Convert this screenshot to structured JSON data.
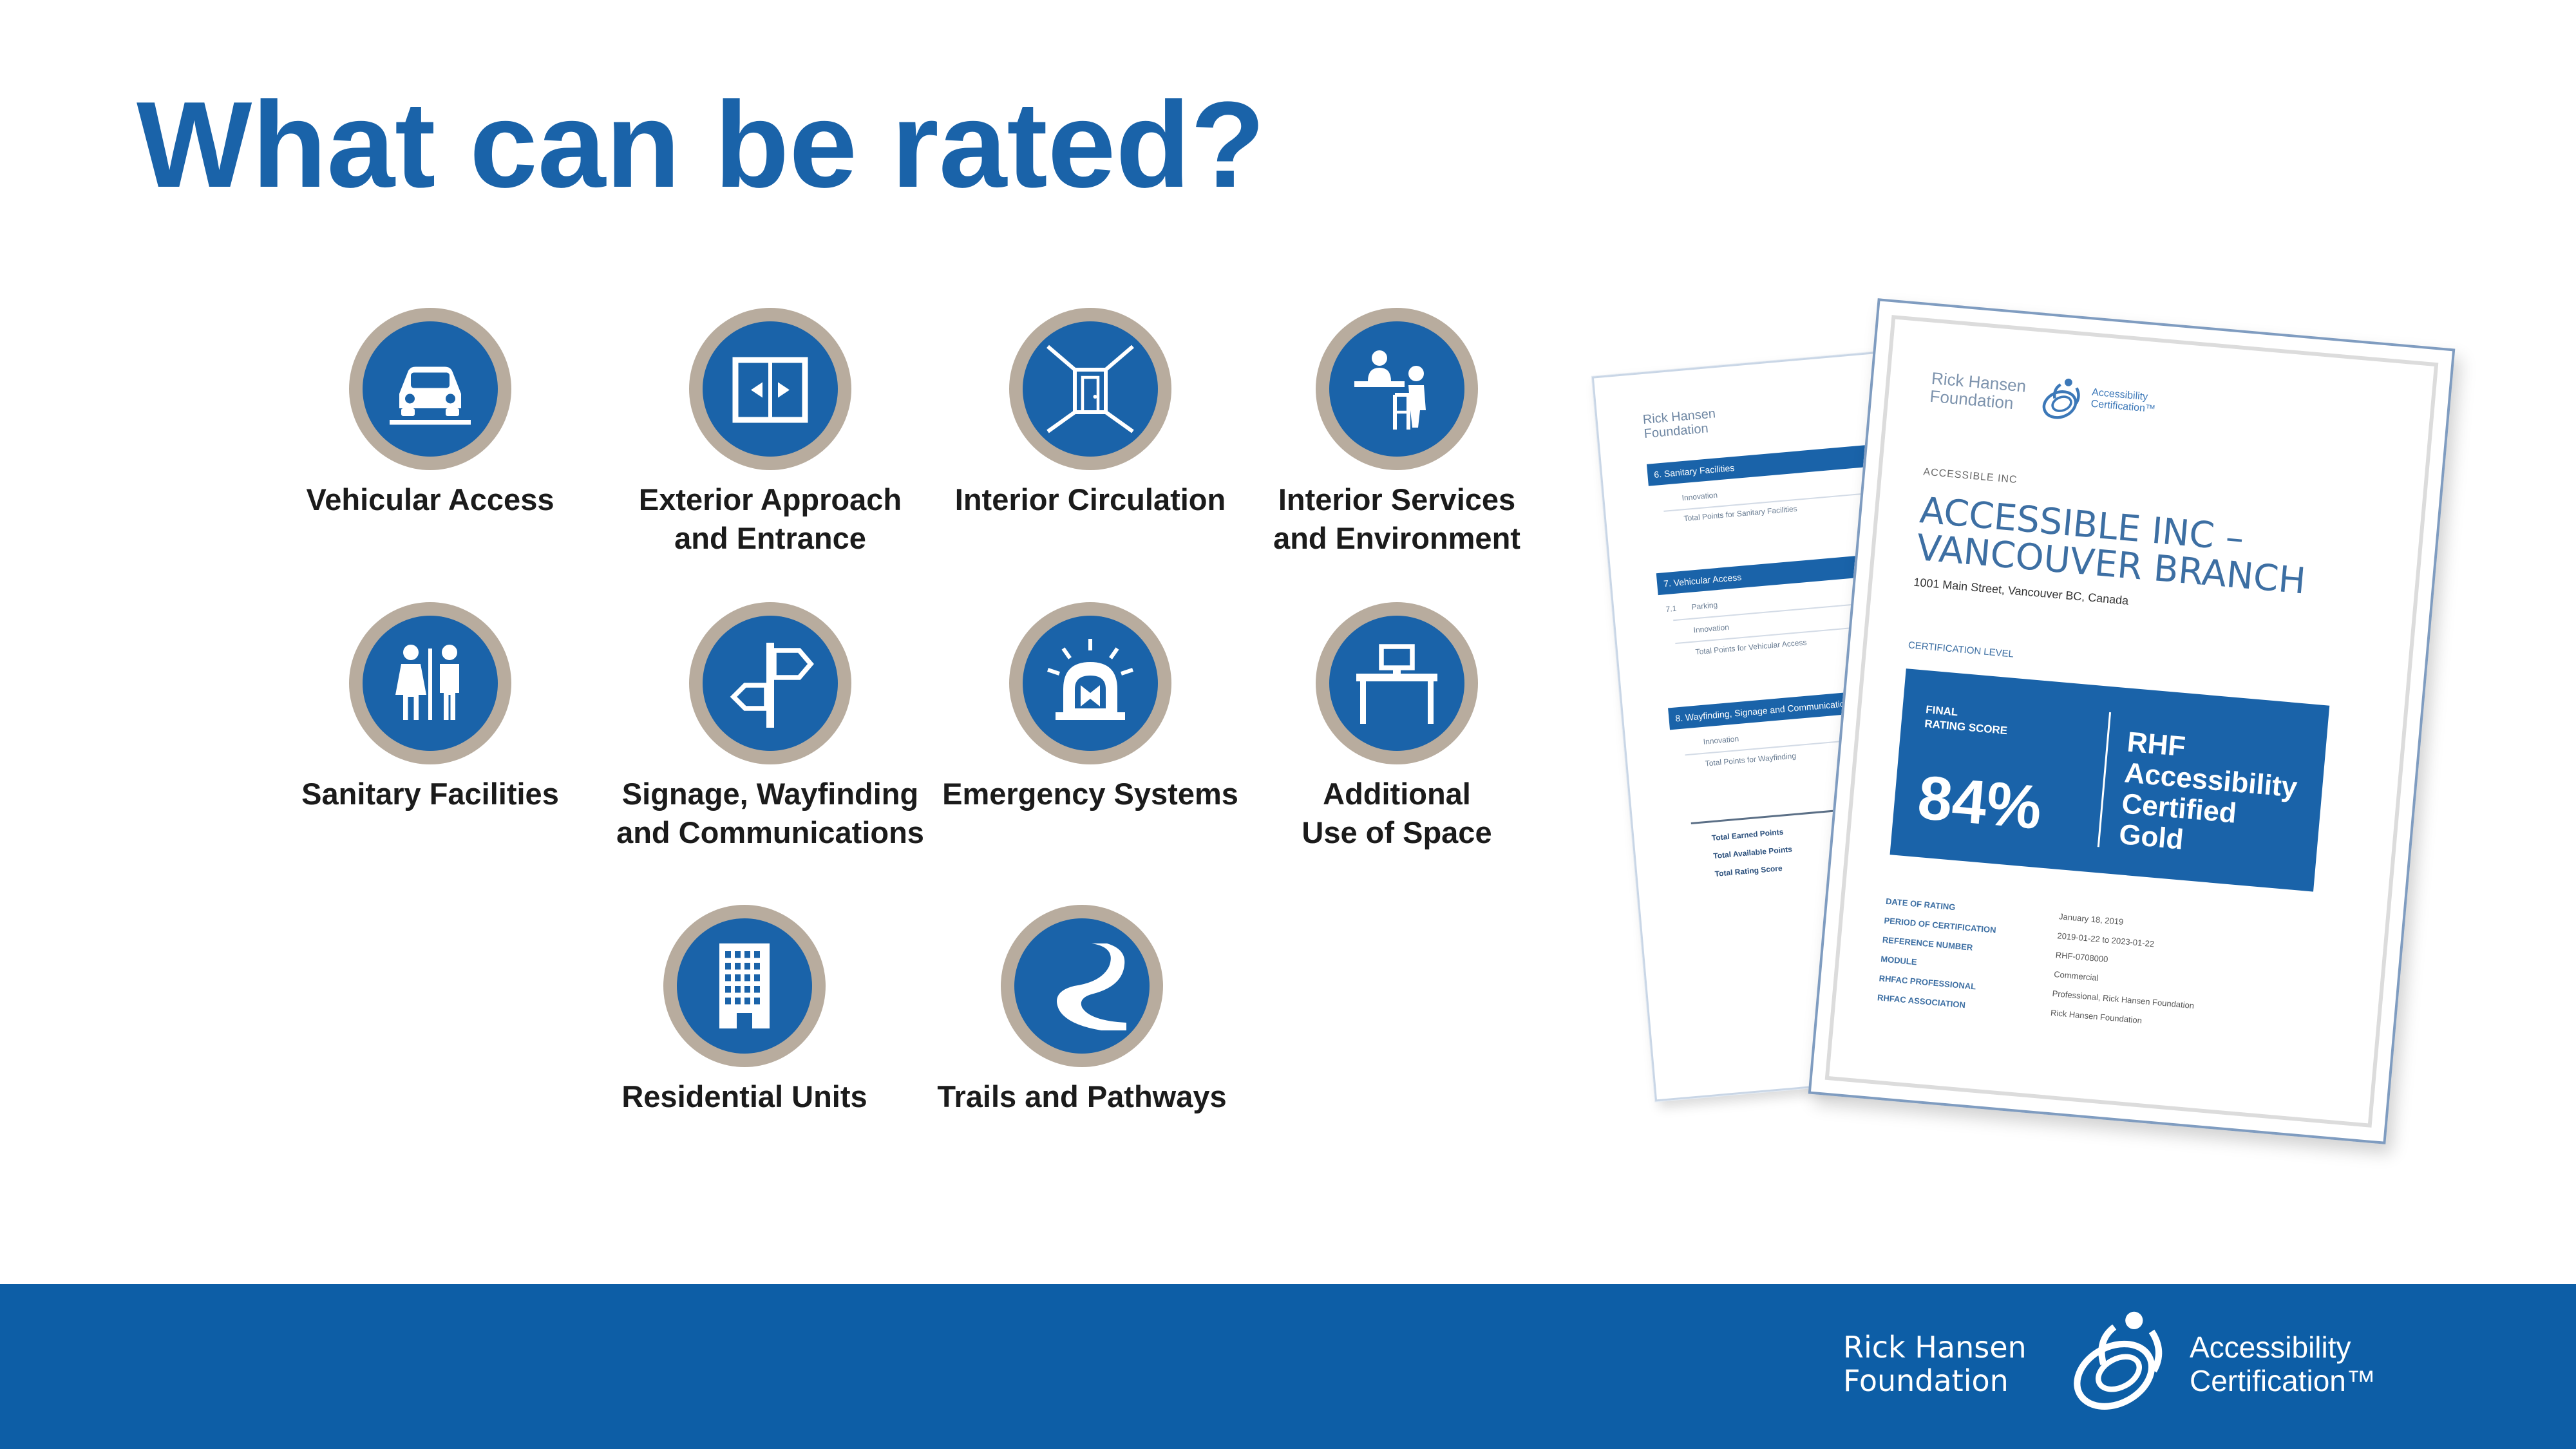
{
  "slide": {
    "title": "What can be rated?",
    "colors": {
      "brand_blue": "#1a63a9",
      "icon_ring": "#b8ac9e",
      "footer_blue": "#0d5ea6"
    }
  },
  "categories": [
    {
      "icon": "car-icon",
      "label_line1": "Vehicular Access",
      "label_line2": ""
    },
    {
      "icon": "sliding-doors-icon",
      "label_line1": "Exterior Approach",
      "label_line2": "and Entrance"
    },
    {
      "icon": "corridor-door-icon",
      "label_line1": "Interior Circulation",
      "label_line2": ""
    },
    {
      "icon": "service-counter-icon",
      "label_line1": "Interior Services",
      "label_line2": "and Environment"
    },
    {
      "icon": "restroom-icon",
      "label_line1": "Sanitary Facilities",
      "label_line2": ""
    },
    {
      "icon": "signpost-icon",
      "label_line1": "Signage, Wayfinding",
      "label_line2": "and Communications"
    },
    {
      "icon": "alarm-light-icon",
      "label_line1": "Emergency Systems",
      "label_line2": ""
    },
    {
      "icon": "desk-icon",
      "label_line1": "Additional",
      "label_line2": "Use of Space"
    },
    {
      "icon": "apartment-building-icon",
      "label_line1": "Residential Units",
      "label_line2": ""
    },
    {
      "icon": "trail-path-icon",
      "label_line1": "Trails and Pathways",
      "label_line2": ""
    }
  ],
  "certificate": {
    "logo_org_line1": "Rick Hansen",
    "logo_org_line2": "Foundation",
    "logo_program_line1": "Accessibility",
    "logo_program_line2": "Certification™",
    "kicker": "ACCESSIBLE INC",
    "business_name_line1": "ACCESSIBLE INC –",
    "business_name_line2": "VANCOUVER BRANCH",
    "address": "1001 Main Street, Vancouver BC, Canada",
    "certification_level_label": "CERTIFICATION LEVEL",
    "final_rating_line1": "FINAL",
    "final_rating_line2": "RATING SCORE",
    "score": "84%",
    "cert_line1": "RHF",
    "cert_line2": "Accessibility",
    "cert_line3": "Certified",
    "cert_line4": "Gold",
    "meta": [
      {
        "key": "DATE OF RATING",
        "value": "January 18, 2019"
      },
      {
        "key": "PERIOD OF CERTIFICATION",
        "value": "2019-01-22 to 2023-01-22"
      },
      {
        "key": "REFERENCE NUMBER",
        "value": "RHF-0708000"
      },
      {
        "key": "MODULE",
        "value": "Commercial"
      },
      {
        "key": "RHFAC PROFESSIONAL",
        "value": "Professional, Rick Hansen Foundation"
      },
      {
        "key": "RHFAC ASSOCIATION",
        "value": "Rick Hansen Foundation"
      }
    ]
  },
  "back_report": {
    "section1": "6. Sanitary Facilities",
    "s1_row": "Innovation",
    "s1_total": "Total Points for Sanitary Facilities",
    "section2": "7. Vehicular Access",
    "s2_num": "7.1",
    "s2_row1": "Parking",
    "s2_row2": "Innovation",
    "s2_total": "Total Points for Vehicular Access",
    "section3": "8. Wayfinding, Signage and Communications",
    "s3_row": "Innovation",
    "s3_total": "Total Points for Wayfinding",
    "sum1": "Total Earned Points",
    "sum2": "Total Available Points",
    "sum3": "Total Rating Score"
  },
  "footer": {
    "org_line1": "Rick Hansen",
    "org_line2": "Foundation",
    "program_line1": "Accessibility",
    "program_line2": "Certification™"
  }
}
